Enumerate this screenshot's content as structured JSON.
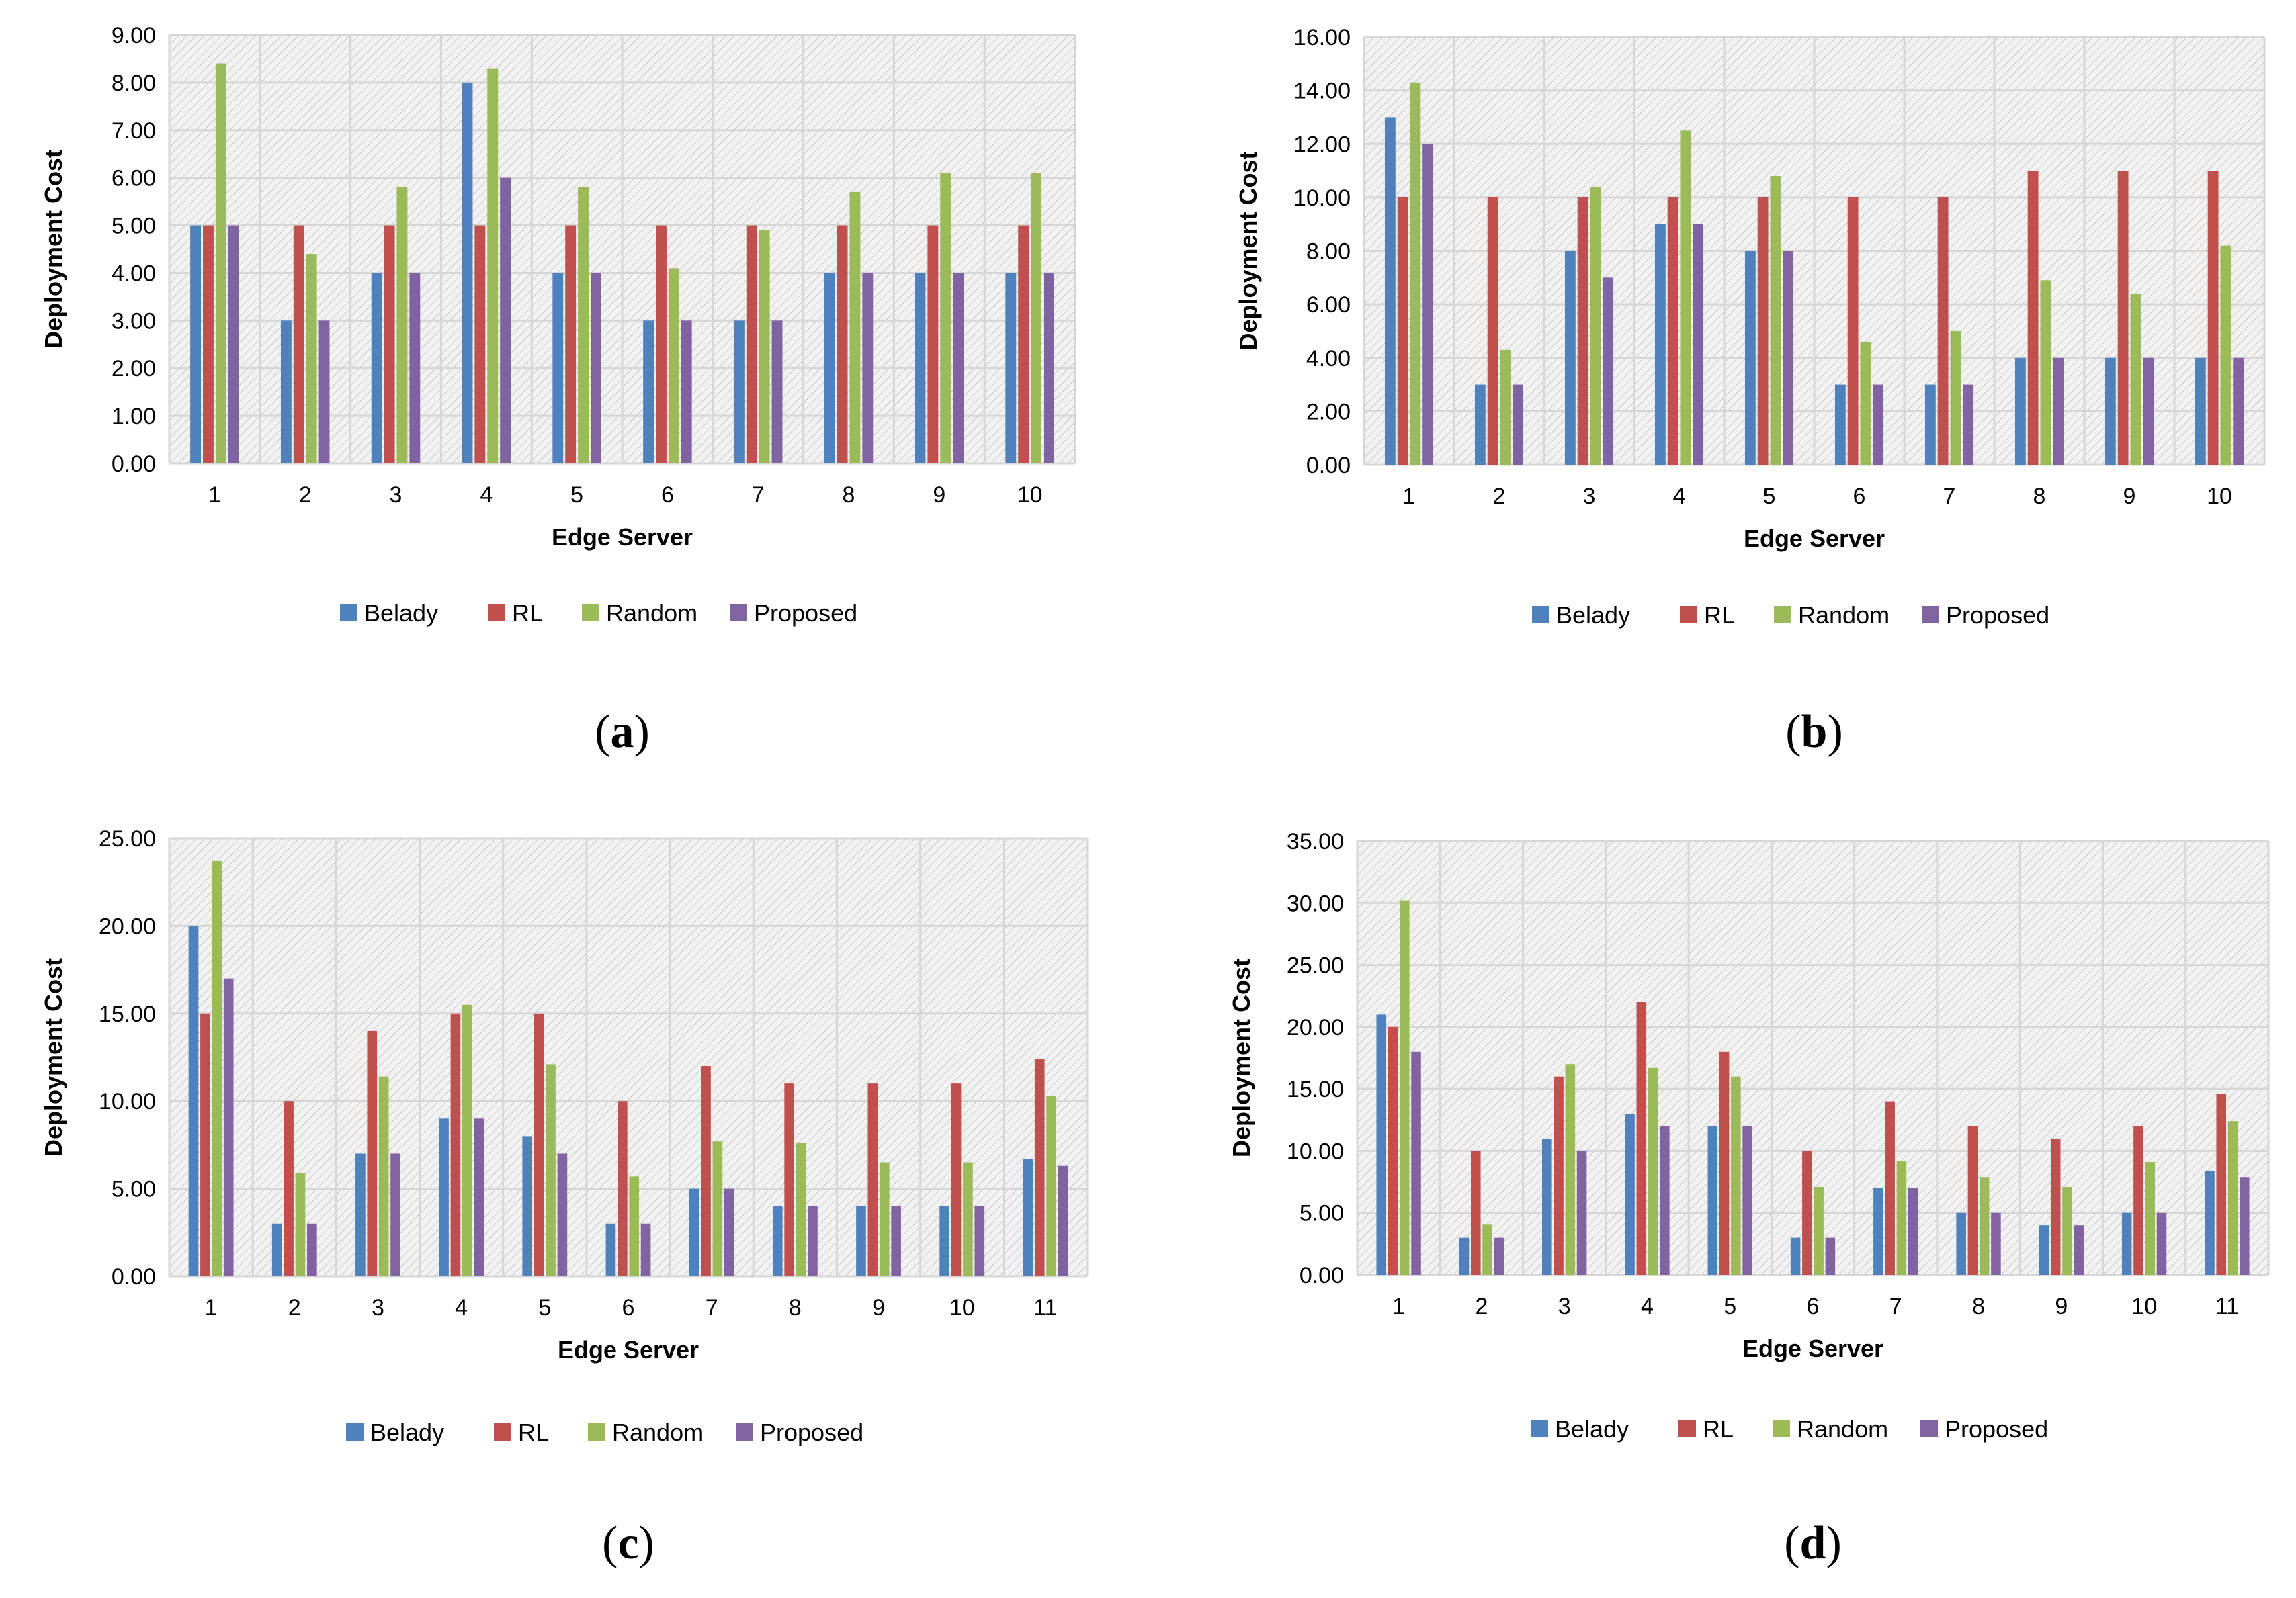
{
  "chart_data": [
    {
      "type": "bar",
      "panel_label": "a",
      "title": "",
      "xlabel": "Edge Server",
      "ylabel": "Deployment Cost",
      "ylim": [
        0,
        9
      ],
      "ystep": 1,
      "categories": [
        "1",
        "2",
        "3",
        "4",
        "5",
        "6",
        "7",
        "8",
        "9",
        "10"
      ],
      "series": [
        {
          "name": "Belady",
          "color": "#4f81bd",
          "values": [
            5,
            3,
            4,
            8,
            4,
            3,
            3,
            4,
            4,
            4
          ]
        },
        {
          "name": "RL",
          "color": "#c0504d",
          "values": [
            5,
            5,
            5,
            5,
            5,
            5,
            5,
            5,
            5,
            5
          ]
        },
        {
          "name": "Random",
          "color": "#9bbb59",
          "values": [
            8.4,
            4.4,
            5.8,
            8.3,
            5.8,
            4.1,
            4.9,
            5.7,
            6.1,
            6.1
          ]
        },
        {
          "name": "Proposed",
          "color": "#8064a2",
          "values": [
            5,
            3,
            4,
            6,
            4,
            3,
            3,
            4,
            4,
            4
          ]
        }
      ],
      "grid": true,
      "legend": "bottom"
    },
    {
      "type": "bar",
      "panel_label": "b",
      "title": "",
      "xlabel": "Edge Server",
      "ylabel": "Deployment Cost",
      "ylim": [
        0,
        16
      ],
      "ystep": 2,
      "categories": [
        "1",
        "2",
        "3",
        "4",
        "5",
        "6",
        "7",
        "8",
        "9",
        "10"
      ],
      "series": [
        {
          "name": "Belady",
          "color": "#4f81bd",
          "values": [
            13,
            3,
            8,
            9,
            8,
            3,
            3,
            4,
            4,
            4
          ]
        },
        {
          "name": "RL",
          "color": "#c0504d",
          "values": [
            10,
            10,
            10,
            10,
            10,
            10,
            10,
            11,
            11,
            11
          ]
        },
        {
          "name": "Random",
          "color": "#9bbb59",
          "values": [
            14.3,
            4.3,
            10.4,
            12.5,
            10.8,
            4.6,
            5,
            6.9,
            6.4,
            8.2
          ]
        },
        {
          "name": "Proposed",
          "color": "#8064a2",
          "values": [
            12,
            3,
            7,
            9,
            8,
            3,
            3,
            4,
            4,
            4
          ]
        }
      ],
      "grid": true,
      "legend": "bottom"
    },
    {
      "type": "bar",
      "panel_label": "c",
      "title": "",
      "xlabel": "Edge Server",
      "ylabel": "Deployment Cost",
      "ylim": [
        0,
        25
      ],
      "ystep": 5,
      "categories": [
        "1",
        "2",
        "3",
        "4",
        "5",
        "6",
        "7",
        "8",
        "9",
        "10",
        "11"
      ],
      "series": [
        {
          "name": "Belady",
          "color": "#4f81bd",
          "values": [
            20,
            3,
            7,
            9,
            8,
            3,
            5,
            4,
            4,
            4,
            6.7
          ]
        },
        {
          "name": "RL",
          "color": "#c0504d",
          "values": [
            15,
            10,
            14,
            15,
            15,
            10,
            12,
            11,
            11,
            11,
            12.4
          ]
        },
        {
          "name": "Random",
          "color": "#9bbb59",
          "values": [
            23.7,
            5.9,
            11.4,
            15.5,
            12.1,
            5.7,
            7.7,
            7.6,
            6.5,
            6.5,
            10.3
          ]
        },
        {
          "name": "Proposed",
          "color": "#8064a2",
          "values": [
            17,
            3,
            7,
            9,
            7,
            3,
            5,
            4,
            4,
            4,
            6.3
          ]
        }
      ],
      "grid": true,
      "legend": "bottom"
    },
    {
      "type": "bar",
      "panel_label": "d",
      "title": "",
      "xlabel": "Edge Server",
      "ylabel": "Deployment Cost",
      "ylim": [
        0,
        35
      ],
      "ystep": 5,
      "categories": [
        "1",
        "2",
        "3",
        "4",
        "5",
        "6",
        "7",
        "8",
        "9",
        "10",
        "11"
      ],
      "series": [
        {
          "name": "Belady",
          "color": "#4f81bd",
          "values": [
            21,
            3,
            11,
            13,
            12,
            3,
            7,
            5,
            4,
            5,
            8.4
          ]
        },
        {
          "name": "RL",
          "color": "#c0504d",
          "values": [
            20,
            10,
            16,
            22,
            18,
            10,
            14,
            12,
            11,
            12,
            14.6
          ]
        },
        {
          "name": "Random",
          "color": "#9bbb59",
          "values": [
            30.2,
            4.1,
            17,
            16.7,
            16,
            7.1,
            9.2,
            7.9,
            7.1,
            9.1,
            12.4
          ]
        },
        {
          "name": "Proposed",
          "color": "#8064a2",
          "values": [
            18,
            3,
            10,
            12,
            12,
            3,
            7,
            5,
            4,
            5,
            7.9
          ]
        }
      ],
      "grid": true,
      "legend": "bottom"
    }
  ]
}
